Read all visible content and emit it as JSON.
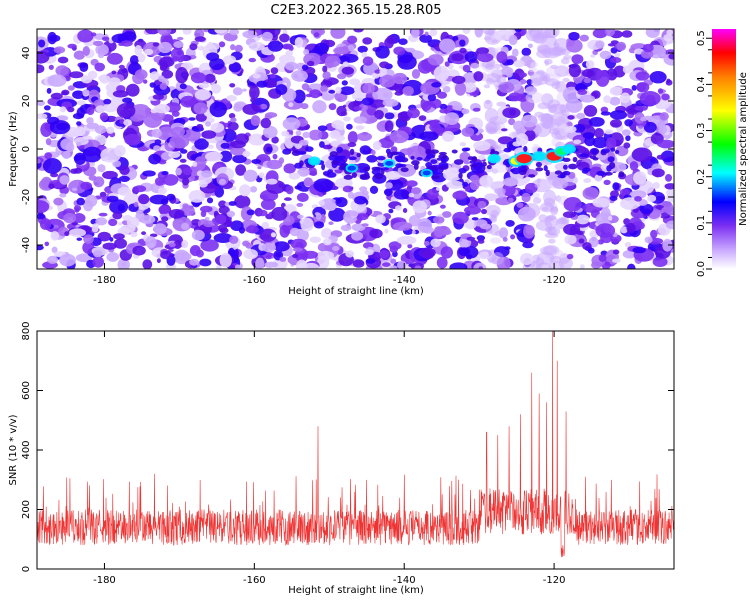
{
  "title": "C2E3.2022.365.15.28.R05",
  "chart_data": [
    {
      "type": "heatmap",
      "title": "C2E3.2022.365.15.28.R05",
      "xlabel": "Height of straight line (km)",
      "ylabel": "Frequency (Hz)",
      "xlim": [
        -189,
        -104
      ],
      "ylim": [
        -50,
        50
      ],
      "xticks": [
        -180,
        -160,
        -140,
        -120
      ],
      "yticks": [
        -40,
        -20,
        0,
        20,
        40
      ],
      "colorbar": {
        "label": "Normalized spectral amplitude",
        "range": [
          0.0,
          0.52
        ],
        "ticks": [
          0.0,
          0.1,
          0.2,
          0.3,
          0.4,
          0.5
        ],
        "colors": [
          "#ffffff",
          "#d9c2ff",
          "#7a2ff0",
          "#0000ff",
          "#00ffff",
          "#00ff00",
          "#ffff00",
          "#ff8000",
          "#ff0000",
          "#ff00ff"
        ]
      },
      "features": [
        {
          "x": -152,
          "y": -5,
          "value": 0.14
        },
        {
          "x": -147,
          "y": -8,
          "value": 0.12
        },
        {
          "x": -142,
          "y": -6,
          "value": 0.11
        },
        {
          "x": -137,
          "y": -10,
          "value": 0.1
        },
        {
          "x": -128,
          "y": -4,
          "value": 0.16
        },
        {
          "x": -125,
          "y": -5,
          "value": 0.32
        },
        {
          "x": -124,
          "y": -4,
          "value": 0.47
        },
        {
          "x": -122,
          "y": -3,
          "value": 0.2
        },
        {
          "x": -120,
          "y": -3,
          "value": 0.45
        },
        {
          "x": -119,
          "y": -1,
          "value": 0.25
        },
        {
          "x": -118,
          "y": 0,
          "value": 0.18
        }
      ],
      "quiet_bands": [
        [
          -129,
          -127
        ],
        [
          -123,
          -118
        ]
      ]
    },
    {
      "type": "line",
      "xlabel": "Height of straight line (km)",
      "ylabel": "SNR (10 * v/v)",
      "xlim": [
        -189,
        -104
      ],
      "ylim": [
        0,
        800
      ],
      "xticks": [
        -180,
        -160,
        -140,
        -120
      ],
      "yticks": [
        0,
        200,
        400,
        600,
        800
      ],
      "line_color": "#ee3333",
      "baseline": {
        "mean": 140,
        "spread": 60
      },
      "peaks": [
        {
          "x": -151.5,
          "y": 480
        },
        {
          "x": -129.0,
          "y": 460
        },
        {
          "x": -127.5,
          "y": 450
        },
        {
          "x": -126.0,
          "y": 480
        },
        {
          "x": -124.5,
          "y": 520
        },
        {
          "x": -123.0,
          "y": 660
        },
        {
          "x": -122.0,
          "y": 590
        },
        {
          "x": -121.0,
          "y": 560
        },
        {
          "x": -120.2,
          "y": 800
        },
        {
          "x": -119.6,
          "y": 700
        },
        {
          "x": -118.4,
          "y": 530
        }
      ]
    }
  ]
}
